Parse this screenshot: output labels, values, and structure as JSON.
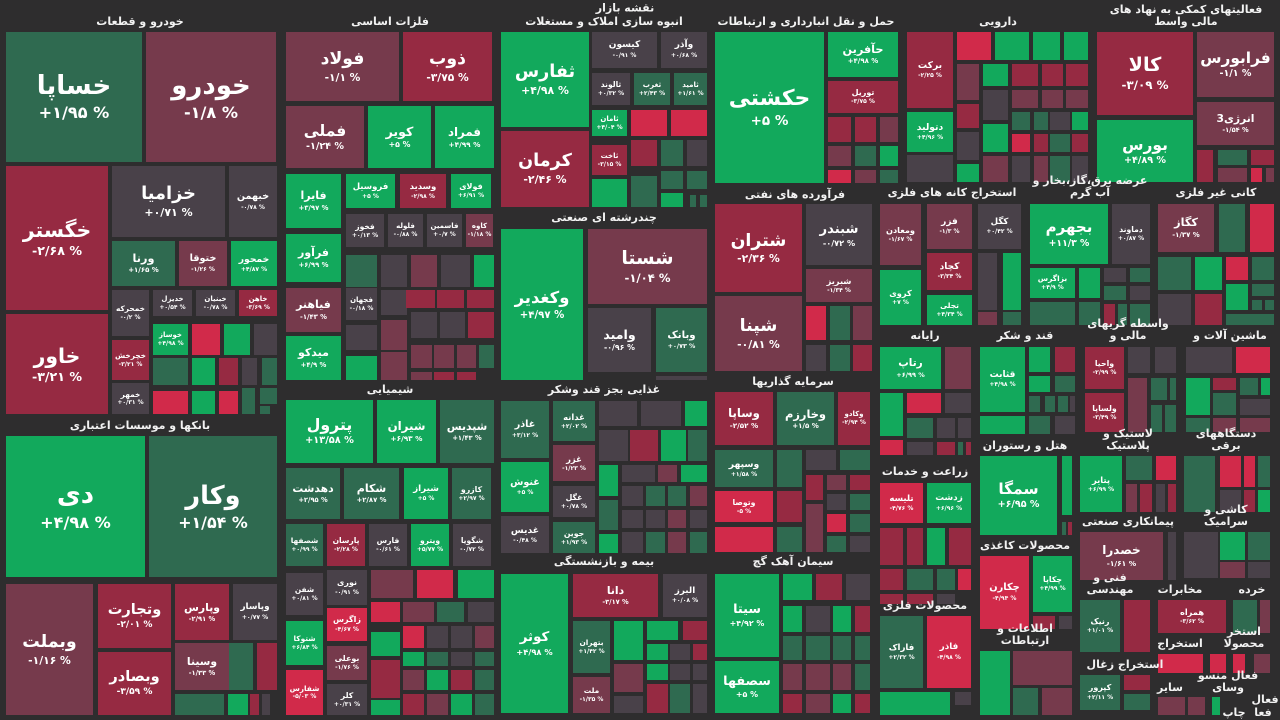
{
  "header": {
    "title": "نقشه بازار"
  },
  "colors": {
    "G": "#12a95c",
    "g": "#2f6a50",
    "R": "#d12a4a",
    "r": "#962a42",
    "m": "#763a4c",
    "n": "#494149",
    "background": "#2e2d2e"
  },
  "sectors": [
    {
      "title": "خودرو و قطعات",
      "stocks": [
        {
          "name": "خساپا",
          "change": "+۱/۹۵ %",
          "tone": "g"
        },
        {
          "name": "خودرو",
          "change": "-۱/۸ %",
          "tone": "m"
        },
        {
          "name": "خگستر",
          "change": "-۲/۶۸ %",
          "tone": "r"
        },
        {
          "name": "خاور",
          "change": "-۳/۲۱ %",
          "tone": "r"
        },
        {
          "name": "خزامیا",
          "change": "+۰/۷۱ %",
          "tone": "n"
        },
        {
          "name": "خبهمن",
          "change": "-۰/۷۸ %",
          "tone": "n"
        },
        {
          "name": "ورنا",
          "change": "+۱/۶۵ %",
          "tone": "g"
        },
        {
          "name": "ختوقا",
          "change": "-۱/۲۶ %",
          "tone": "m"
        },
        {
          "name": "خمحور",
          "change": "+۴/۸۷ %",
          "tone": "G"
        },
        {
          "name": "خمحرکه",
          "change": "-۰/۲ %",
          "tone": "n"
        },
        {
          "name": "خدیزل",
          "change": "+۰/۵۴ %",
          "tone": "n"
        },
        {
          "name": "خبنیان",
          "change": "-۰/۷۸ %",
          "tone": "n"
        },
        {
          "name": "خاهن",
          "change": "-۳/۶۹ %",
          "tone": "r"
        },
        {
          "name": "خوساز",
          "change": "+۴/۹۸ %",
          "tone": "G"
        },
        {
          "name": "خچرخش",
          "change": "-۳/۲۱ %",
          "tone": "r"
        },
        {
          "name": "خمهر",
          "change": "+۰/۳۱ %",
          "tone": "n"
        }
      ]
    },
    {
      "title": "فلزات اساسی",
      "stocks": [
        {
          "name": "فولاد",
          "change": "-۱/۱ %",
          "tone": "m"
        },
        {
          "name": "ذوب",
          "change": "-۳/۷۵ %",
          "tone": "r"
        },
        {
          "name": "فملی",
          "change": "-۱/۲۴ %",
          "tone": "m"
        },
        {
          "name": "کویر",
          "change": "+۵ %",
          "tone": "G"
        },
        {
          "name": "فمراد",
          "change": "+۴/۹۹ %",
          "tone": "G"
        },
        {
          "name": "فایرا",
          "change": "+۳/۹۷ %",
          "tone": "G"
        },
        {
          "name": "فروسیل",
          "change": "+۵ %",
          "tone": "G"
        },
        {
          "name": "وسدید",
          "change": "-۲/۹۸ %",
          "tone": "r"
        },
        {
          "name": "فولای",
          "change": "+۶/۹۱ %",
          "tone": "G"
        },
        {
          "name": "فخوز",
          "change": "+۰/۱۳ %",
          "tone": "n"
        },
        {
          "name": "فلوله",
          "change": "-۰/۸۸ %",
          "tone": "n"
        },
        {
          "name": "فاسمین",
          "change": "+۰/۷ %",
          "tone": "n"
        },
        {
          "name": "کاوه",
          "change": "-۱/۱۸ %",
          "tone": "m"
        },
        {
          "name": "فرآور",
          "change": "+۶/۹۹ %",
          "tone": "G"
        },
        {
          "name": "فیاهنر",
          "change": "-۱/۴۳ %",
          "tone": "m"
        },
        {
          "name": "فجهان",
          "change": "-۰/۱۸ %",
          "tone": "n"
        },
        {
          "name": "میدکو",
          "change": "+۴/۹ %",
          "tone": "G"
        }
      ]
    },
    {
      "title": "شیمیایی",
      "stocks": [
        {
          "name": "پترول",
          "change": "+۱۳/۵۸ %",
          "tone": "G"
        },
        {
          "name": "شیران",
          "change": "+۶/۹۳ %",
          "tone": "G"
        },
        {
          "name": "شپدیس",
          "change": "+۱/۴۳ %",
          "tone": "g"
        },
        {
          "name": "دهدشت",
          "change": "+۲/۹۵ %",
          "tone": "g"
        },
        {
          "name": "شکام",
          "change": "+۲/۸۷ %",
          "tone": "g"
        },
        {
          "name": "شیراز",
          "change": "+۵ %",
          "tone": "G"
        },
        {
          "name": "کازرو",
          "change": "+۲/۹۷ %",
          "tone": "g"
        },
        {
          "name": "شصفها",
          "change": "+۰/۹۹ %",
          "tone": "g"
        },
        {
          "name": "پارسان",
          "change": "-۲/۲۸ %",
          "tone": "r"
        },
        {
          "name": "فارس",
          "change": "-۰/۶۱ %",
          "tone": "n"
        },
        {
          "name": "ویترو",
          "change": "+۵/۷۷ %",
          "tone": "G"
        },
        {
          "name": "شگویا",
          "change": "-۰/۷۲ %",
          "tone": "n"
        },
        {
          "name": "شفن",
          "change": "+۰/۸۱ %",
          "tone": "n"
        },
        {
          "name": "نوری",
          "change": "-۰/۹۱ %",
          "tone": "n"
        },
        {
          "name": "زاگرس",
          "change": "-۴/۶۷ %",
          "tone": "R"
        },
        {
          "name": "شتوکا",
          "change": "+۶/۸۴ %",
          "tone": "G"
        },
        {
          "name": "بوعلی",
          "change": "-۱/۷۶ %",
          "tone": "m"
        },
        {
          "name": "شفارس",
          "change": "-۵/۰۳ %",
          "tone": "R"
        },
        {
          "name": "کلر",
          "change": "+۰/۳۱ %",
          "tone": "n"
        }
      ]
    },
    {
      "title": "بانکها و موسسات اعتباری",
      "stocks": [
        {
          "name": "دی",
          "change": "+۴/۹۸ %",
          "tone": "G"
        },
        {
          "name": "وکار",
          "change": "+۱/۵۴ %",
          "tone": "g"
        },
        {
          "name": "وبملت",
          "change": "-۱/۱۶ %",
          "tone": "m"
        },
        {
          "name": "وتجارت",
          "change": "-۲/۰۱ %",
          "tone": "r"
        },
        {
          "name": "وبصادر",
          "change": "-۳/۵۹ %",
          "tone": "r"
        },
        {
          "name": "وپارس",
          "change": "-۲/۹۱ %",
          "tone": "r"
        },
        {
          "name": "وپاسار",
          "change": "+۰/۷۷ %",
          "tone": "n"
        },
        {
          "name": "وسینا",
          "change": "-۱/۳۳ %",
          "tone": "m"
        }
      ]
    },
    {
      "title": "انبوه سازی املاک و مستغلات",
      "stocks": [
        {
          "name": "ثفارس",
          "change": "+۴/۹۸ %",
          "tone": "G"
        },
        {
          "name": "کرمان",
          "change": "-۲/۴۶ %",
          "tone": "r"
        },
        {
          "name": "کیسون",
          "change": "-۰/۹۱ %",
          "tone": "n"
        },
        {
          "name": "وآذر",
          "change": "+۰/۶۸ %",
          "tone": "n"
        },
        {
          "name": "ثالوند",
          "change": "+۰/۳۲ %",
          "tone": "n"
        },
        {
          "name": "ثغرب",
          "change": "+۲/۴۳ %",
          "tone": "g"
        },
        {
          "name": "ثامید",
          "change": "+۱/۶۱ %",
          "tone": "g"
        },
        {
          "name": "ثامان",
          "change": "+۴/۰۴ %",
          "tone": "G"
        },
        {
          "name": "ثاخت",
          "change": "-۳/۱۵ %",
          "tone": "r"
        }
      ]
    },
    {
      "title": "چندرشته ای صنعتی",
      "stocks": [
        {
          "name": "وکغدیر",
          "change": "+۴/۹۷ %",
          "tone": "G"
        },
        {
          "name": "شستا",
          "change": "-۱/۰۴ %",
          "tone": "m"
        },
        {
          "name": "وامید",
          "change": "-۰/۹۶ %",
          "tone": "n"
        },
        {
          "name": "وبانک",
          "change": "+۰/۷۳ %",
          "tone": "g"
        }
      ]
    },
    {
      "title": "غذایی بجز قند وشکر",
      "stocks": [
        {
          "name": "غاذر",
          "change": "+۳/۱۲ %",
          "tone": "g"
        },
        {
          "name": "غدانه",
          "change": "+۲/۰۲ %",
          "tone": "g"
        },
        {
          "name": "غنوش",
          "change": "+۵ %",
          "tone": "G"
        },
        {
          "name": "غزر",
          "change": "-۱/۲۳ %",
          "tone": "m"
        },
        {
          "name": "غدیس",
          "change": "-۰/۴۸ %",
          "tone": "n"
        },
        {
          "name": "غگل",
          "change": "+۰/۷۸ %",
          "tone": "n"
        },
        {
          "name": "جوین",
          "change": "+۱/۹۳ %",
          "tone": "g"
        }
      ]
    },
    {
      "title": "بیمه و بازنشستگی",
      "stocks": [
        {
          "name": "کوثر",
          "change": "+۴/۹۸ %",
          "tone": "G"
        },
        {
          "name": "دانا",
          "change": "-۳/۱۷ %",
          "tone": "r"
        },
        {
          "name": "البرز",
          "change": "+۰/۰۸ %",
          "tone": "n"
        },
        {
          "name": "بتهران",
          "change": "+۱/۴۲ %",
          "tone": "g"
        },
        {
          "name": "ملت",
          "change": "-۱/۳۵ %",
          "tone": "m"
        }
      ]
    },
    {
      "title": "حمل و نقل انبارداری و ارتباطات",
      "stocks": [
        {
          "name": "حکشتی",
          "change": "+۵ %",
          "tone": "G"
        },
        {
          "name": "حآفرین",
          "change": "+۴/۹۸ %",
          "tone": "G"
        },
        {
          "name": "توریل",
          "change": "-۳/۷۵ %",
          "tone": "r"
        }
      ]
    },
    {
      "title": "فرآورده های نفتی",
      "stocks": [
        {
          "name": "شتران",
          "change": "-۲/۳۶ %",
          "tone": "r"
        },
        {
          "name": "شبندر",
          "change": "-۰/۷۲ %",
          "tone": "n"
        },
        {
          "name": "شبریز",
          "change": "-۱/۳۴ %",
          "tone": "m"
        },
        {
          "name": "شپنا",
          "change": "-۰/۸۱ %",
          "tone": "m"
        }
      ]
    },
    {
      "title": "سرمایه گذاریها",
      "stocks": [
        {
          "name": "وساپا",
          "change": "-۲/۵۲ %",
          "tone": "r"
        },
        {
          "name": "وخارزم",
          "change": "+۱/۵ %",
          "tone": "g"
        },
        {
          "name": "وکادو",
          "change": "-۲/۹۴ %",
          "tone": "r"
        },
        {
          "name": "وسپهر",
          "change": "+۱/۵۸ %",
          "tone": "g"
        },
        {
          "name": "وتوصا",
          "change": "-۵ %",
          "tone": "R"
        }
      ]
    },
    {
      "title": "سیمان آهک گچ",
      "stocks": [
        {
          "name": "سیتا",
          "change": "+۴/۹۲ %",
          "tone": "G"
        },
        {
          "name": "سصفها",
          "change": "+۵ %",
          "tone": "G"
        }
      ]
    },
    {
      "title": "دارویی",
      "stocks": [
        {
          "name": "برکت",
          "change": "-۲/۲۵ %",
          "tone": "r"
        },
        {
          "name": "دتولید",
          "change": "+۴/۹۶ %",
          "tone": "G"
        }
      ]
    },
    {
      "title": "فعالیتهای کمکی به نهاد های مالی واسط",
      "stocks": [
        {
          "name": "کالا",
          "change": "-۳/۰۹ %",
          "tone": "r"
        },
        {
          "name": "فرابورس",
          "change": "-۱/۱ %",
          "tone": "m"
        },
        {
          "name": "انرژی3",
          "change": "-۱/۵۴ %",
          "tone": "m"
        },
        {
          "name": "بورس",
          "change": "+۴/۸۹ %",
          "tone": "G"
        }
      ]
    },
    {
      "title": "استخراج کانه های فلزی",
      "stocks": [
        {
          "name": "ومعادن",
          "change": "-۱/۶۷ %",
          "tone": "m"
        },
        {
          "name": "فزر",
          "change": "-۱/۳ %",
          "tone": "m"
        },
        {
          "name": "کگل",
          "change": "+۰/۴۲ %",
          "tone": "n"
        },
        {
          "name": "کچاد",
          "change": "-۳/۳۴ %",
          "tone": "r"
        },
        {
          "name": "کروی",
          "change": "+۷ %",
          "tone": "G"
        },
        {
          "name": "تجلی",
          "change": "+۴/۳۴ %",
          "tone": "G"
        }
      ]
    },
    {
      "title": "عرضه برق،گاز،بخار و آب گرم",
      "stocks": [
        {
          "name": "بجهرم",
          "change": "+۱۱/۳ %",
          "tone": "G"
        },
        {
          "name": "دماوند",
          "change": "+۰/۸۷ %",
          "tone": "n"
        },
        {
          "name": "بزاگرس",
          "change": "+۴/۹ %",
          "tone": "G"
        }
      ]
    },
    {
      "title": "کانی غیر فلزی",
      "stocks": [
        {
          "name": "کگاز",
          "change": "-۱/۳۷ %",
          "tone": "m"
        }
      ]
    },
    {
      "title": "رایانه",
      "stocks": [
        {
          "name": "رتاپ",
          "change": "+۶/۹۹ %",
          "tone": "G"
        }
      ]
    },
    {
      "title": "زراعت و خدمات",
      "stocks": [
        {
          "name": "تلیسه",
          "change": "-۴/۷۶ %",
          "tone": "R"
        },
        {
          "name": "زدشت",
          "change": "+۶/۹۶ %",
          "tone": "G"
        }
      ]
    },
    {
      "title": "محصولات فلزی",
      "stocks": [
        {
          "name": "فاراک",
          "change": "+۲/۳۲ %",
          "tone": "g"
        },
        {
          "name": "فاذر",
          "change": "-۴/۹۸ %",
          "tone": "R"
        }
      ]
    },
    {
      "title": "قند و شکر",
      "stocks": [
        {
          "name": "قثابت",
          "change": "+۴/۹۸ %",
          "tone": "G"
        }
      ]
    },
    {
      "title": "هتل و رستوران",
      "stocks": [
        {
          "name": "سمگا",
          "change": "+۶/۹۵ %",
          "tone": "G"
        }
      ]
    },
    {
      "title": "محصولات کاغذی",
      "stocks": [
        {
          "name": "چکارن",
          "change": "-۴/۹۴ %",
          "tone": "R"
        },
        {
          "name": "چکاپا",
          "change": "+۴/۹۹ %",
          "tone": "G"
        }
      ]
    },
    {
      "title": "اطلاعات و ارتباطات",
      "stocks": []
    },
    {
      "title": "واسطه گریهای مالی و",
      "stocks": [
        {
          "name": "واحیا",
          "change": "-۲/۹۹ %",
          "tone": "r"
        },
        {
          "name": "ولساپا",
          "change": "-۳/۴۹ %",
          "tone": "r"
        }
      ]
    },
    {
      "title": "لاستیک و پلاستیک",
      "stocks": [
        {
          "name": "پتایر",
          "change": "+۶/۹۹ %",
          "tone": "G"
        }
      ]
    },
    {
      "title": "پیمانکاری صنعتی",
      "stocks": [
        {
          "name": "خصدرا",
          "change": "-۱/۶۱ %",
          "tone": "m"
        }
      ]
    },
    {
      "title": "فنی و مهندسی",
      "stocks": [
        {
          "name": "رنیک",
          "change": "+۱/۰۱ %",
          "tone": "g"
        }
      ]
    },
    {
      "title": "استخراج زغال",
      "stocks": [
        {
          "name": "کپرور",
          "change": "+۲/۱۱ %",
          "tone": "g"
        }
      ]
    },
    {
      "title": "ماشین آلات و",
      "stocks": []
    },
    {
      "title": "دستگاههای برقی",
      "stocks": []
    },
    {
      "title": "کاشی و سرامیک",
      "stocks": []
    },
    {
      "title": "مخابرات",
      "stocks": [
        {
          "name": "همراه",
          "change": "-۳/۶۲ %",
          "tone": "r"
        }
      ]
    },
    {
      "title": "خرده",
      "stocks": []
    },
    {
      "title": "استخراج",
      "stocks": []
    },
    {
      "title": "استخر محصولا",
      "stocks": []
    },
    {
      "title": "سایر",
      "stocks": []
    },
    {
      "title": "فعال منسو وسای",
      "stocks": []
    },
    {
      "title": "فعال",
      "stocks": []
    },
    {
      "title": "چاپ",
      "stocks": []
    },
    {
      "title": "فعا",
      "stocks": []
    }
  ]
}
